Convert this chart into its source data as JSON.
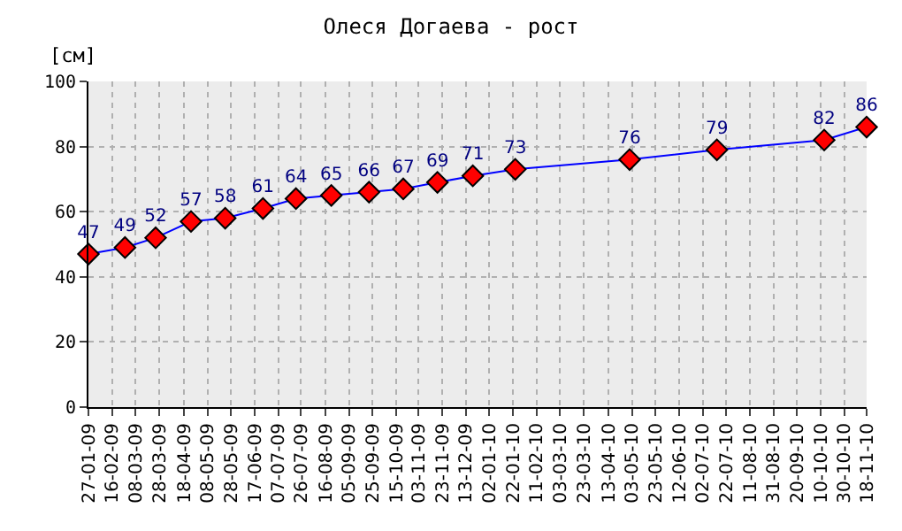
{
  "chart_data": {
    "type": "line",
    "title": "Олеся Догаева - рост",
    "ylabel": "[см]",
    "x": [
      "2009-01-27",
      "2009-02-27",
      "2009-03-25",
      "2009-04-24",
      "2009-05-23",
      "2009-06-24",
      "2009-07-22",
      "2009-08-21",
      "2009-09-22",
      "2009-10-21",
      "2009-11-19",
      "2009-12-19",
      "2010-01-24",
      "2010-05-01",
      "2010-07-14",
      "2010-10-13",
      "2010-11-18"
    ],
    "series": [
      {
        "color": "#0000ff",
        "colors": [
          "#ff0000",
          "#ff0000",
          "#ff0000",
          "#ff0000",
          "#ff0000",
          "#ff0000",
          "#ff0000",
          "#ff0000",
          "#ff0000",
          "#ff0000",
          "#ff0000",
          "#ff0000",
          "#ff0000",
          "#ff0000",
          "#ff0000",
          "#ff0000",
          "#ff0000"
        ],
        "values": [
          47,
          49,
          52,
          57,
          58,
          61,
          64,
          65,
          66,
          67,
          69,
          71,
          73,
          76,
          79,
          82,
          86
        ]
      }
    ],
    "data_labels": true,
    "marker": "diamond",
    "line_style": "solid",
    "grid": true,
    "ylim": [
      0,
      100
    ],
    "yticks": [
      0,
      20,
      40,
      60,
      80,
      100
    ],
    "xlim": [
      "2009-01-27",
      "2010-11-18"
    ],
    "xticks": [
      {
        "value": "2009-01-27",
        "label": "27-01-09"
      },
      {
        "value": "2009-02-16",
        "label": "16-02-09"
      },
      {
        "value": "2009-03-08",
        "label": "08-03-09"
      },
      {
        "value": "2009-03-28",
        "label": "28-03-09"
      },
      {
        "value": "2009-04-18",
        "label": "18-04-09"
      },
      {
        "value": "2009-05-08",
        "label": "08-05-09"
      },
      {
        "value": "2009-05-28",
        "label": "28-05-09"
      },
      {
        "value": "2009-06-17",
        "label": "17-06-09"
      },
      {
        "value": "2009-07-07",
        "label": "07-07-09"
      },
      {
        "value": "2009-07-26",
        "label": "26-07-09"
      },
      {
        "value": "2009-08-16",
        "label": "16-08-09"
      },
      {
        "value": "2009-09-05",
        "label": "05-09-09"
      },
      {
        "value": "2009-09-25",
        "label": "25-09-09"
      },
      {
        "value": "2009-10-15",
        "label": "15-10-09"
      },
      {
        "value": "2009-11-03",
        "label": "03-11-09"
      },
      {
        "value": "2009-11-23",
        "label": "23-11-09"
      },
      {
        "value": "2009-12-13",
        "label": "13-12-09"
      },
      {
        "value": "2010-01-02",
        "label": "02-01-10"
      },
      {
        "value": "2010-01-22",
        "label": "22-01-10"
      },
      {
        "value": "2010-02-11",
        "label": "11-02-10"
      },
      {
        "value": "2010-03-03",
        "label": "03-03-10"
      },
      {
        "value": "2010-03-23",
        "label": "23-03-10"
      },
      {
        "value": "2010-04-13",
        "label": "13-04-10"
      },
      {
        "value": "2010-05-03",
        "label": "03-05-10"
      },
      {
        "value": "2010-05-23",
        "label": "23-05-10"
      },
      {
        "value": "2010-06-12",
        "label": "12-06-10"
      },
      {
        "value": "2010-07-02",
        "label": "02-07-10"
      },
      {
        "value": "2010-07-22",
        "label": "22-07-10"
      },
      {
        "value": "2010-08-11",
        "label": "11-08-10"
      },
      {
        "value": "2010-08-31",
        "label": "31-08-10"
      },
      {
        "value": "2010-09-20",
        "label": "20-09-10"
      },
      {
        "value": "2010-10-10",
        "label": "10-10-10"
      },
      {
        "value": "2010-10-30",
        "label": "30-10-10"
      },
      {
        "value": "2010-11-18",
        "label": "18-11-10"
      }
    ]
  }
}
